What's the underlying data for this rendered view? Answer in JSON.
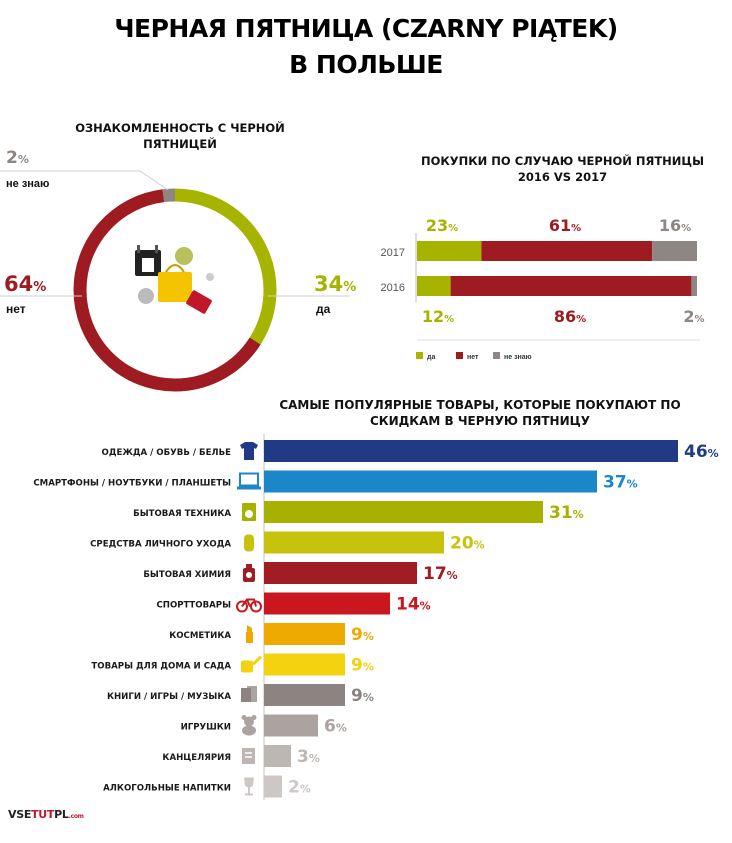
{
  "title_line1": "ЧЕРНАЯ ПЯТНИЦА (CZARNY PIĄTEK)",
  "title_line2": "В ПОЛЬШЕ",
  "brand": {
    "a": "VSE",
    "b": "TUT",
    "c": "PL",
    "d": ".com"
  },
  "colors": {
    "green": "#a6b400",
    "red": "#9e1b22",
    "grey": "#8e8683",
    "navy": "#213a85",
    "blue": "#1b87c9",
    "olive": "#a7b100",
    "yellowgreen": "#c7c30c",
    "darkred": "#a01d23",
    "brightred": "#c9161f",
    "orange": "#f0a900",
    "yellow": "#f4d20e",
    "taupe": "#8d8482",
    "lightgrey": "#aaa39f",
    "lightergrey": "#bdb7b4",
    "palest": "#cdc8c5"
  },
  "chart_data": [
    {
      "type": "pie",
      "title": "ОЗНАКОМЛЕННОСТЬ С ЧЕРНОЙ ПЯТНИЦЕЙ",
      "slices": [
        {
          "label": "да",
          "value": 34,
          "display": "34",
          "color": "#a6b400"
        },
        {
          "label": "нет",
          "value": 64,
          "display": "64",
          "color": "#9e1b22"
        },
        {
          "label": "не знаю",
          "value": 2,
          "display": "2",
          "color": "#8e8683"
        }
      ]
    },
    {
      "type": "bar",
      "stacked": true,
      "orientation": "horizontal",
      "title": "ПОКУПКИ ПО СЛУЧАЮ ЧЕРНОЙ ПЯТНИЦЫ 2016 VS 2017",
      "categories": [
        "2017",
        "2016"
      ],
      "series": [
        {
          "name": "да",
          "values": [
            23,
            12
          ],
          "color": "#a6b400"
        },
        {
          "name": "нет",
          "values": [
            61,
            86
          ],
          "color": "#9e1b22"
        },
        {
          "name": "не знаю",
          "values": [
            16,
            2
          ],
          "color": "#8e8683"
        }
      ],
      "legend": "bottom-left"
    },
    {
      "type": "bar",
      "orientation": "horizontal",
      "title": "САМЫЕ ПОПУЛЯРНЫЕ ТОВАРЫ, КОТОРЫЕ ПОКУПАЮТ ПО СКИДКАМ В ЧЕРНУЮ ПЯТНИЦУ",
      "unit": "%",
      "xlim": [
        0,
        46
      ],
      "items": [
        {
          "label": "ОДЕЖДА / ОБУВЬ / БЕЛЬЕ",
          "value": 46,
          "color": "#213a85",
          "icon": "tshirt-icon"
        },
        {
          "label": "СМАРТФОНЫ / НОУТБУКИ / ПЛАНШЕТЫ",
          "value": 37,
          "color": "#1b87c9",
          "icon": "laptop-icon"
        },
        {
          "label": "БЫТОВАЯ ТЕХНИКА",
          "value": 31,
          "color": "#a7b100",
          "icon": "washing-machine-icon"
        },
        {
          "label": "СРЕДСТВА ЛИЧНОГО УХОДА",
          "value": 20,
          "color": "#c7c30c",
          "icon": "cream-icon"
        },
        {
          "label": "БЫТОВАЯ ХИМИЯ",
          "value": 17,
          "color": "#a01d23",
          "icon": "detergent-icon"
        },
        {
          "label": "СПОРТТОВАРЫ",
          "value": 14,
          "color": "#c9161f",
          "icon": "bicycle-icon"
        },
        {
          "label": "КОСМЕТИКА",
          "value": 9,
          "color": "#f0a900",
          "icon": "lipstick-icon"
        },
        {
          "label": "ТОВАРЫ ДЛЯ ДОМА И САДА",
          "value": 9,
          "color": "#f4d20e",
          "icon": "watering-can-icon"
        },
        {
          "label": "КНИГИ / ИГРЫ / МУЗЫКА",
          "value": 9,
          "color": "#8d8482",
          "icon": "books-icon"
        },
        {
          "label": "ИГРУШКИ",
          "value": 6,
          "color": "#aaa39f",
          "icon": "teddy-bear-icon"
        },
        {
          "label": "КАНЦЕЛЯРИЯ",
          "value": 3,
          "color": "#bdb7b4",
          "icon": "notepad-icon"
        },
        {
          "label": "АЛКОГОЛЬНЫЕ НАПИТКИ",
          "value": 2,
          "color": "#cdc8c5",
          "icon": "wine-glass-icon"
        }
      ]
    }
  ]
}
